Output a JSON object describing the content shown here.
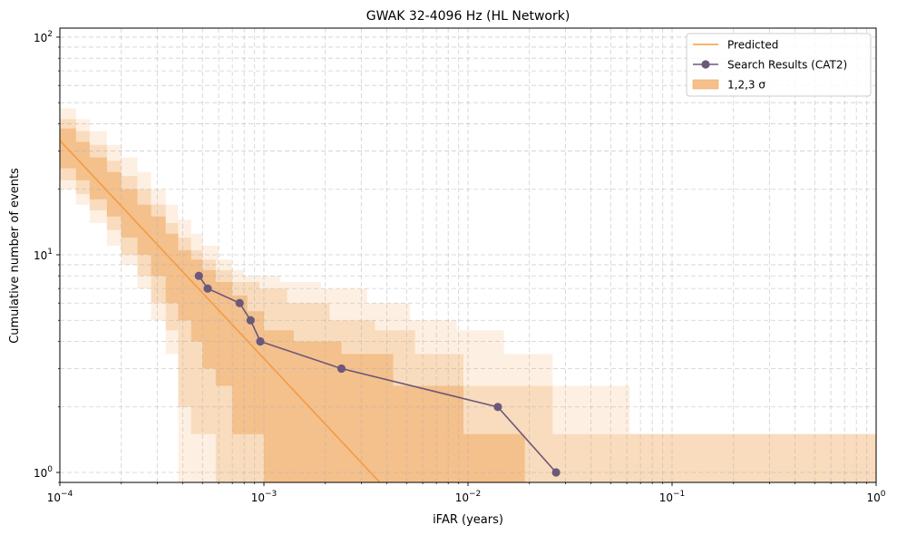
{
  "chart_data": {
    "type": "line",
    "title": "GWAK 32-4096 Hz (HL Network)",
    "xlabel": "iFAR (years)",
    "ylabel": "Cumulative number of events",
    "xscale": "log",
    "yscale": "log",
    "xlim": [
      0.0001,
      1
    ],
    "ylim": [
      0.9,
      110
    ],
    "x_ticks": [
      {
        "value": 0.0001,
        "base": "10",
        "exp": "−4"
      },
      {
        "value": 0.001,
        "base": "10",
        "exp": "−3"
      },
      {
        "value": 0.01,
        "base": "10",
        "exp": "−2"
      },
      {
        "value": 0.1,
        "base": "10",
        "exp": "−1"
      },
      {
        "value": 1,
        "base": "10",
        "exp": "0"
      }
    ],
    "y_ticks": [
      {
        "value": 1,
        "base": "10",
        "exp": "0"
      },
      {
        "value": 10,
        "base": "10",
        "exp": "1"
      },
      {
        "value": 100,
        "base": "10",
        "exp": "2"
      }
    ],
    "grid": true,
    "legend_position": "top-right",
    "legend": [
      {
        "label": "Predicted",
        "kind": "line",
        "color": "#f39c43"
      },
      {
        "label": "Search Results (CAT2)",
        "kind": "line-marker",
        "color": "#6b587a"
      },
      {
        "label": "1,2,3 σ",
        "kind": "patch",
        "color": "#f4c08c"
      }
    ],
    "predicted": {
      "name": "Predicted",
      "color": "#f39c43",
      "x": [
        0.0001,
        0.0037
      ],
      "y": [
        33.5,
        0.9
      ]
    },
    "search_results": {
      "name": "Search Results (CAT2)",
      "color": "#6b587a",
      "x": [
        0.00048,
        0.00053,
        0.00076,
        0.00086,
        0.00096,
        0.0024,
        0.014,
        0.027
      ],
      "y": [
        8,
        7,
        6,
        5,
        4,
        3,
        2,
        1
      ]
    },
    "bands": [
      {
        "sigma": 3,
        "color": "#fdf0e2",
        "steps": [
          [
            0.0001,
            47,
            20
          ],
          [
            0.00012,
            42,
            17
          ],
          [
            0.00014,
            37,
            14
          ],
          [
            0.00017,
            32,
            11
          ],
          [
            0.0002,
            28,
            9
          ],
          [
            0.00024,
            24,
            7
          ],
          [
            0.00028,
            20,
            5
          ],
          [
            0.00033,
            17,
            3.5
          ],
          [
            0.00038,
            14.5,
            0.9
          ],
          [
            0.00044,
            12.5,
            0.9
          ],
          [
            0.0005,
            11,
            0.9
          ],
          [
            0.0006,
            9.5,
            0.9
          ],
          [
            0.0007,
            8.5,
            0.9
          ],
          [
            0.0008,
            8,
            0.9
          ],
          [
            0.0012,
            7.5,
            0.9
          ],
          [
            0.0019,
            7,
            0.9
          ],
          [
            0.0032,
            6,
            0.9
          ],
          [
            0.0052,
            5,
            0.9
          ],
          [
            0.0088,
            4.5,
            0.9
          ],
          [
            0.015,
            3.5,
            0.9
          ],
          [
            0.026,
            2.5,
            0.9
          ],
          [
            0.062,
            1.5,
            0.9
          ],
          [
            1.0,
            1.5,
            0.9
          ]
        ]
      },
      {
        "sigma": 2,
        "color": "#f9dcbd",
        "steps": [
          [
            0.0001,
            42,
            22
          ],
          [
            0.00012,
            37,
            19
          ],
          [
            0.00014,
            32,
            16
          ],
          [
            0.00017,
            27,
            13
          ],
          [
            0.0002,
            23,
            10
          ],
          [
            0.00024,
            20,
            8
          ],
          [
            0.00028,
            17,
            6
          ],
          [
            0.00033,
            14,
            4.5
          ],
          [
            0.00038,
            12,
            2
          ],
          [
            0.00044,
            10.5,
            1.5
          ],
          [
            0.0005,
            9.5,
            1.5
          ],
          [
            0.00058,
            8.5,
            0.9
          ],
          [
            0.0007,
            7.5,
            0.9
          ],
          [
            0.00095,
            7,
            0.9
          ],
          [
            0.0013,
            6,
            0.9
          ],
          [
            0.0021,
            5,
            0.9
          ],
          [
            0.0035,
            4.5,
            0.9
          ],
          [
            0.0055,
            3.5,
            0.9
          ],
          [
            0.0095,
            2.5,
            0.9
          ],
          [
            0.015,
            2.5,
            0.9
          ],
          [
            0.026,
            1.5,
            0.9
          ],
          [
            0.14,
            1.5,
            0.9
          ],
          [
            1.0,
            0.9,
            0.9
          ]
        ]
      },
      {
        "sigma": 1,
        "color": "#f4c08c",
        "steps": [
          [
            0.0001,
            38,
            25
          ],
          [
            0.00012,
            33,
            22
          ],
          [
            0.00014,
            28,
            18
          ],
          [
            0.00017,
            24,
            15
          ],
          [
            0.0002,
            20,
            12
          ],
          [
            0.00024,
            17,
            10
          ],
          [
            0.00028,
            15,
            8
          ],
          [
            0.00033,
            12.5,
            6
          ],
          [
            0.00038,
            10.5,
            5
          ],
          [
            0.00044,
            9.5,
            4
          ],
          [
            0.0005,
            8.5,
            3
          ],
          [
            0.00058,
            7.5,
            2.5
          ],
          [
            0.0007,
            6.5,
            1.5
          ],
          [
            0.00083,
            5.5,
            1.5
          ],
          [
            0.001,
            4.5,
            0.9
          ],
          [
            0.0014,
            4,
            0.9
          ],
          [
            0.0024,
            3.5,
            0.9
          ],
          [
            0.0043,
            2.5,
            0.9
          ],
          [
            0.0095,
            1.5,
            0.9
          ],
          [
            0.019,
            0.9,
            0.9
          ],
          [
            1.0,
            0.9,
            0.9
          ]
        ]
      }
    ]
  }
}
